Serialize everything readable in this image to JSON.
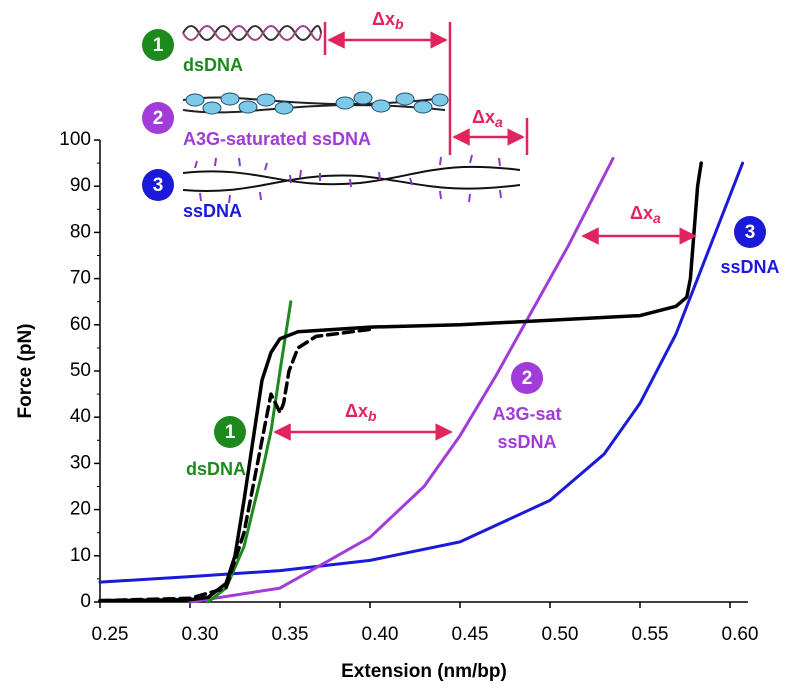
{
  "inset": {
    "items": [
      {
        "number": "1",
        "label": "dsDNA"
      },
      {
        "number": "2",
        "label": "A3G-saturated ssDNA"
      },
      {
        "number": "3",
        "label": "ssDNA"
      }
    ],
    "delta_b": {
      "text": "Δx",
      "sub": "b"
    },
    "delta_a": {
      "text": "Δx",
      "sub": "a"
    }
  },
  "chart_data": {
    "type": "line",
    "xlabel": "Extension (nm/bp)",
    "ylabel": "Force (pN)",
    "xlim": [
      0.25,
      0.61
    ],
    "ylim": [
      0,
      100
    ],
    "xticks": [
      {
        "value": 0.25,
        "label": "0.25"
      },
      {
        "value": 0.3,
        "label": "0.30"
      },
      {
        "value": 0.35,
        "label": "0.35"
      },
      {
        "value": 0.4,
        "label": "0.40"
      },
      {
        "value": 0.45,
        "label": "0.45"
      },
      {
        "value": 0.5,
        "label": "0.50"
      },
      {
        "value": 0.55,
        "label": "0.55"
      },
      {
        "value": 0.6,
        "label": "0.60"
      }
    ],
    "yticks": [
      0,
      10,
      20,
      30,
      40,
      50,
      60,
      70,
      80,
      90,
      100
    ],
    "series": [
      {
        "name": "ssDNA",
        "color": "#1a1ad8",
        "dashed": false,
        "x": [
          0.25,
          0.3,
          0.35,
          0.4,
          0.45,
          0.5,
          0.53,
          0.55,
          0.57,
          0.58,
          0.6,
          0.607
        ],
        "values": [
          4.3,
          5.5,
          6.8,
          9,
          13,
          22,
          32,
          43,
          58,
          68,
          88,
          95
        ]
      },
      {
        "name": "A3G-sat ssDNA",
        "color": "#a23cd8",
        "dashed": false,
        "x": [
          0.3,
          0.35,
          0.4,
          0.43,
          0.45,
          0.47,
          0.49,
          0.51,
          0.535
        ],
        "values": [
          0,
          3,
          14,
          25,
          36,
          49,
          63,
          77,
          96
        ]
      },
      {
        "name": "dsDNA",
        "color": "#1e8a1e",
        "dashed": false,
        "x": [
          0.31,
          0.32,
          0.33,
          0.34,
          0.345,
          0.35,
          0.356
        ],
        "values": [
          0,
          3,
          12,
          28,
          37,
          50,
          65
        ]
      },
      {
        "color": "#000000",
        "dashed": true,
        "x": [
          0.25,
          0.3,
          0.32,
          0.33,
          0.34,
          0.345,
          0.35,
          0.352,
          0.355,
          0.36,
          0.37,
          0.4
        ],
        "values": [
          0.3,
          0.8,
          3,
          15,
          35,
          45,
          41,
          43,
          50,
          55,
          57.5,
          59
        ]
      },
      {
        "color": "#000000",
        "dashed": false,
        "x": [
          0.25,
          0.3,
          0.31,
          0.32,
          0.325,
          0.33,
          0.335,
          0.34,
          0.345,
          0.35,
          0.36,
          0.4,
          0.45,
          0.5,
          0.55,
          0.57,
          0.576,
          0.578,
          0.58,
          0.582,
          0.584
        ],
        "values": [
          0.3,
          0.5,
          1,
          4,
          10,
          22,
          35,
          48,
          54,
          57,
          58.5,
          59.5,
          60,
          61,
          62,
          64,
          66,
          70,
          80,
          90,
          95
        ]
      }
    ],
    "annotations": {
      "labels": [
        {
          "number": "1",
          "label": "dsDNA"
        },
        {
          "number": "2",
          "label": "A3G-sat",
          "label2": "ssDNA"
        },
        {
          "number": "3",
          "label": "ssDNA"
        }
      ],
      "delta_b": {
        "text": "Δx",
        "sub": "b"
      },
      "delta_a": {
        "text": "Δx",
        "sub": "a"
      }
    }
  }
}
